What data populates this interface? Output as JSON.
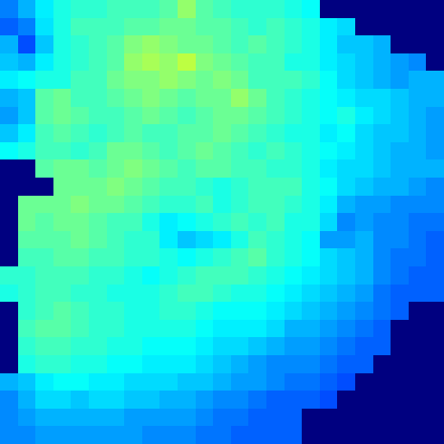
{
  "chart_data": {
    "type": "heatmap",
    "color": "jet",
    "tick_labels": false,
    "zlim": [
      0,
      100
    ],
    "cells": [
      [
        25,
        30,
        36,
        40,
        42,
        42,
        44,
        44,
        44,
        46,
        52,
        46,
        44,
        42,
        42,
        42,
        40,
        38,
        0,
        0,
        0,
        0,
        0,
        0,
        0
      ],
      [
        22,
        25,
        35,
        40,
        44,
        44,
        44,
        46,
        46,
        48,
        48,
        46,
        46,
        44,
        42,
        44,
        42,
        40,
        36,
        34,
        0,
        0,
        0,
        0,
        0
      ],
      [
        30,
        20,
        32,
        40,
        42,
        44,
        46,
        50,
        52,
        50,
        48,
        48,
        46,
        44,
        46,
        44,
        42,
        40,
        36,
        32,
        32,
        30,
        0,
        0,
        0
      ],
      [
        32,
        30,
        36,
        40,
        42,
        44,
        46,
        52,
        54,
        52,
        56,
        50,
        48,
        46,
        44,
        44,
        40,
        40,
        36,
        34,
        32,
        30,
        28,
        26,
        0
      ],
      [
        36,
        38,
        40,
        40,
        44,
        44,
        48,
        50,
        50,
        52,
        50,
        48,
        50,
        48,
        44,
        44,
        44,
        42,
        38,
        34,
        32,
        30,
        28,
        30,
        30
      ],
      [
        30,
        32,
        46,
        48,
        44,
        44,
        46,
        48,
        50,
        48,
        46,
        48,
        48,
        52,
        48,
        44,
        42,
        40,
        38,
        36,
        34,
        34,
        32,
        30,
        30
      ],
      [
        28,
        32,
        46,
        48,
        46,
        44,
        44,
        46,
        48,
        46,
        44,
        46,
        48,
        48,
        46,
        44,
        42,
        40,
        38,
        40,
        36,
        34,
        32,
        30,
        28
      ],
      [
        32,
        36,
        44,
        46,
        44,
        42,
        44,
        46,
        44,
        44,
        46,
        46,
        48,
        46,
        44,
        42,
        40,
        40,
        36,
        38,
        34,
        32,
        32,
        30,
        28
      ],
      [
        38,
        40,
        44,
        44,
        42,
        44,
        48,
        48,
        46,
        44,
        46,
        48,
        46,
        44,
        42,
        44,
        42,
        40,
        38,
        36,
        34,
        32,
        30,
        30,
        28
      ],
      [
        0,
        0,
        46,
        48,
        48,
        46,
        48,
        50,
        48,
        46,
        44,
        46,
        46,
        44,
        44,
        42,
        42,
        40,
        36,
        34,
        34,
        32,
        30,
        30,
        30
      ],
      [
        0,
        0,
        0,
        48,
        48,
        48,
        50,
        48,
        46,
        44,
        44,
        42,
        40,
        42,
        44,
        44,
        44,
        40,
        38,
        34,
        32,
        30,
        30,
        28,
        26
      ],
      [
        0,
        48,
        48,
        48,
        50,
        48,
        48,
        46,
        44,
        42,
        42,
        44,
        40,
        42,
        44,
        44,
        42,
        40,
        36,
        30,
        28,
        28,
        26,
        26,
        26
      ],
      [
        0,
        48,
        46,
        48,
        48,
        46,
        44,
        44,
        40,
        36,
        38,
        40,
        42,
        44,
        42,
        44,
        40,
        40,
        34,
        26,
        28,
        26,
        26,
        24,
        24
      ],
      [
        0,
        46,
        46,
        46,
        48,
        46,
        44,
        42,
        42,
        36,
        32,
        34,
        36,
        40,
        44,
        42,
        40,
        38,
        28,
        28,
        30,
        26,
        26,
        24,
        22
      ],
      [
        0,
        44,
        44,
        46,
        46,
        44,
        44,
        42,
        42,
        40,
        38,
        40,
        42,
        44,
        46,
        42,
        40,
        38,
        34,
        32,
        30,
        26,
        24,
        24,
        22
      ],
      [
        42,
        42,
        44,
        44,
        44,
        42,
        42,
        40,
        38,
        40,
        42,
        44,
        44,
        44,
        42,
        40,
        38,
        36,
        34,
        32,
        30,
        26,
        24,
        22,
        22
      ],
      [
        40,
        42,
        44,
        44,
        42,
        42,
        40,
        40,
        40,
        42,
        44,
        44,
        42,
        40,
        40,
        38,
        36,
        34,
        32,
        30,
        28,
        24,
        22,
        22,
        22
      ],
      [
        0,
        42,
        44,
        46,
        44,
        42,
        42,
        40,
        40,
        42,
        42,
        40,
        38,
        38,
        38,
        36,
        34,
        32,
        30,
        28,
        26,
        24,
        22,
        0,
        0
      ],
      [
        0,
        44,
        46,
        46,
        44,
        42,
        42,
        40,
        40,
        40,
        40,
        38,
        36,
        36,
        36,
        34,
        30,
        30,
        28,
        26,
        24,
        22,
        0,
        0,
        0
      ],
      [
        0,
        42,
        44,
        44,
        42,
        42,
        40,
        40,
        38,
        38,
        38,
        36,
        34,
        34,
        32,
        30,
        28,
        28,
        26,
        24,
        22,
        22,
        0,
        0,
        0
      ],
      [
        0,
        40,
        42,
        42,
        40,
        40,
        38,
        38,
        36,
        36,
        36,
        34,
        32,
        30,
        28,
        26,
        26,
        26,
        24,
        22,
        22,
        0,
        0,
        0,
        0
      ],
      [
        30,
        32,
        36,
        38,
        38,
        36,
        36,
        34,
        34,
        34,
        32,
        32,
        30,
        28,
        28,
        26,
        24,
        24,
        22,
        20,
        0,
        0,
        0,
        0,
        0
      ],
      [
        26,
        30,
        34,
        34,
        32,
        34,
        34,
        32,
        32,
        30,
        30,
        28,
        26,
        26,
        24,
        22,
        22,
        22,
        20,
        0,
        0,
        0,
        0,
        0,
        0
      ],
      [
        26,
        28,
        30,
        30,
        30,
        30,
        30,
        28,
        28,
        28,
        28,
        26,
        24,
        24,
        22,
        22,
        22,
        0,
        0,
        0,
        0,
        0,
        0,
        0,
        0
      ],
      [
        26,
        26,
        28,
        28,
        28,
        28,
        28,
        28,
        26,
        26,
        26,
        24,
        24,
        22,
        22,
        22,
        22,
        0,
        0,
        0,
        0,
        0,
        0,
        0,
        0
      ]
    ]
  }
}
